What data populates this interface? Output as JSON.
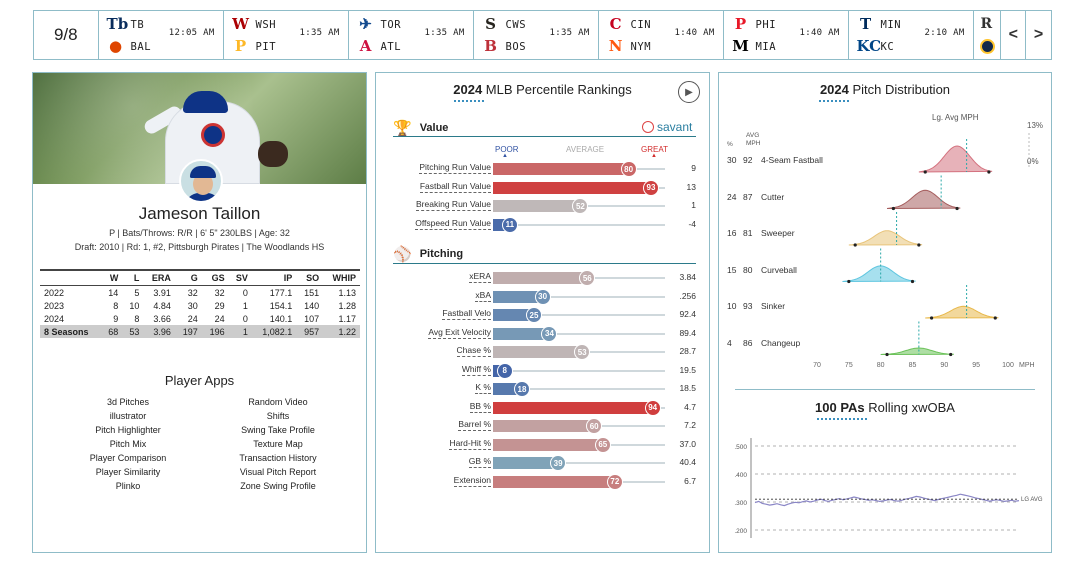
{
  "topbar": {
    "date": "9/8",
    "games": [
      {
        "away": "TB",
        "home": "BAL",
        "time": "12:05 AM",
        "away_color": "#092c5c",
        "home_color": "#df4601",
        "away_logo": "Tb",
        "home_logo": "●"
      },
      {
        "away": "WSH",
        "home": "PIT",
        "time": "1:35 AM",
        "away_color": "#ab0003",
        "home_color": "#fdb827",
        "away_logo": "W",
        "home_logo": "P"
      },
      {
        "away": "TOR",
        "home": "ATL",
        "time": "1:35 AM",
        "away_color": "#134a8e",
        "home_color": "#ce1141",
        "away_logo": "✈",
        "home_logo": "A"
      },
      {
        "away": "CWS",
        "home": "BOS",
        "time": "1:35 AM",
        "away_color": "#27251f",
        "home_color": "#bd3039",
        "away_logo": "S",
        "home_logo": "B"
      },
      {
        "away": "CIN",
        "home": "NYM",
        "time": "1:40 AM",
        "away_color": "#c6011f",
        "home_color": "#ff5910",
        "away_logo": "C",
        "home_logo": "N"
      },
      {
        "away": "PHI",
        "home": "MIA",
        "time": "1:40 AM",
        "away_color": "#e81828",
        "home_color": "#000000",
        "away_logo": "P",
        "home_logo": "M"
      },
      {
        "away": "MIN",
        "home": "KC",
        "time": "2:10 AM",
        "away_color": "#002b5c",
        "home_color": "#004687",
        "away_logo": "T",
        "home_logo": "KC"
      }
    ],
    "prev_label": "<",
    "next_label": ">"
  },
  "player": {
    "name": "Jameson Taillon",
    "info": "P | Bats/Throws: R/R | 6' 5\" 230LBS | Age: 32",
    "draft": "Draft: 2010 | Rd: 1, #2, Pittsburgh Pirates | The Woodlands HS",
    "stat_headers": [
      "",
      "W",
      "L",
      "ERA",
      "G",
      "GS",
      "SV",
      "IP",
      "SO",
      "WHIP"
    ],
    "stat_rows": [
      [
        "2022",
        "14",
        "5",
        "3.91",
        "32",
        "32",
        "0",
        "177.1",
        "151",
        "1.13"
      ],
      [
        "2023",
        "8",
        "10",
        "4.84",
        "30",
        "29",
        "1",
        "154.1",
        "140",
        "1.28"
      ],
      [
        "2024",
        "9",
        "8",
        "3.66",
        "24",
        "24",
        "0",
        "140.1",
        "107",
        "1.17"
      ]
    ],
    "stat_total": [
      "8 Seasons",
      "68",
      "53",
      "3.96",
      "197",
      "196",
      "1",
      "1,082.1",
      "957",
      "1.22"
    ],
    "apps_title": "Player Apps",
    "apps": [
      "3d Pitches",
      "Random Video",
      "illustrator",
      "Shifts",
      "Pitch Highlighter",
      "Swing Take Profile",
      "Pitch Mix",
      "Texture Map",
      "Player Comparison",
      "Transaction History",
      "Player Similarity",
      "Visual Pitch Report",
      "Plinko",
      "Zone Swing Profile"
    ]
  },
  "percentile": {
    "title_year": "2024",
    "title_rest": " MLB Percentile Rankings",
    "value_label": "Value",
    "savant_label": "savant",
    "scale": {
      "poor": "POOR",
      "average": "AVERAGE",
      "great": "GREAT"
    },
    "pitching_label": "Pitching",
    "value_metrics": [
      {
        "label": "Pitching Run Value",
        "pct": 80,
        "value": "9"
      },
      {
        "label": "Fastball Run Value",
        "pct": 93,
        "value": "13"
      },
      {
        "label": "Breaking Run Value",
        "pct": 52,
        "value": "1"
      },
      {
        "label": "Offspeed Run Value",
        "pct": 11,
        "value": "-4"
      }
    ],
    "pitching_metrics": [
      {
        "label": "xERA",
        "pct": 56,
        "value": "3.84"
      },
      {
        "label": "xBA",
        "pct": 30,
        "value": ".256"
      },
      {
        "label": "Fastball Velo",
        "pct": 25,
        "value": "92.4"
      },
      {
        "label": "Avg Exit Velocity",
        "pct": 34,
        "value": "89.4"
      },
      {
        "label": "Chase %",
        "pct": 53,
        "value": "28.7"
      },
      {
        "label": "Whiff %",
        "pct": 8,
        "value": "19.5"
      },
      {
        "label": "K %",
        "pct": 18,
        "value": "18.5"
      },
      {
        "label": "BB %",
        "pct": 94,
        "value": "4.7"
      },
      {
        "label": "Barrel %",
        "pct": 60,
        "value": "7.2"
      },
      {
        "label": "Hard-Hit %",
        "pct": 65,
        "value": "37.0"
      },
      {
        "label": "GB %",
        "pct": 39,
        "value": "40.4"
      },
      {
        "label": "Extension",
        "pct": 72,
        "value": "6.7"
      }
    ]
  },
  "pitch_dist": {
    "title_year": "2024",
    "title_rest": " Pitch Distribution",
    "lg_avg_label": "Lg. Avg MPH",
    "pct_header": "%",
    "avg_header": "AVG",
    "mph_header": "MPH",
    "scale_top": "13%",
    "scale_bottom": "0%",
    "pitches": [
      {
        "name": "4-Seam Fastball",
        "pct": "30",
        "mph": 92,
        "lg": 93.5,
        "color": "#d4727f",
        "height": 1.0
      },
      {
        "name": "Cutter",
        "pct": "24",
        "mph": 87,
        "lg": 89.5,
        "color": "#a65e5e",
        "height": 0.7
      },
      {
        "name": "Sweeper",
        "pct": "16",
        "mph": 81,
        "lg": 82.5,
        "color": "#e8c47a",
        "height": 0.55
      },
      {
        "name": "Curveball",
        "pct": "15",
        "mph": 80,
        "lg": 80,
        "color": "#5fc6e0",
        "height": 0.6
      },
      {
        "name": "Sinker",
        "pct": "10",
        "mph": 93,
        "lg": 93.5,
        "color": "#e8b84a",
        "height": 0.45
      },
      {
        "name": "Changeup",
        "pct": "4",
        "mph": 86,
        "lg": 86,
        "color": "#6cc25a",
        "height": 0.25
      }
    ],
    "x_ticks": [
      "70",
      "75",
      "80",
      "85",
      "90",
      "95",
      "100"
    ],
    "x_unit": "MPH"
  },
  "rolling": {
    "title_bold": "100 PAs",
    "title_rest": " Rolling xwOBA",
    "y_ticks": [
      ".500",
      ".400",
      ".300",
      ".200"
    ],
    "lg_label": "LG AVG",
    "series": [
      0.298,
      0.302,
      0.295,
      0.292,
      0.289,
      0.291,
      0.294,
      0.29,
      0.287,
      0.292,
      0.296,
      0.299,
      0.297,
      0.301,
      0.304,
      0.3,
      0.303,
      0.307,
      0.31,
      0.305,
      0.302,
      0.306,
      0.309,
      0.312,
      0.308,
      0.311,
      0.314,
      0.318,
      0.315,
      0.311,
      0.309,
      0.306,
      0.308,
      0.305,
      0.302,
      0.304,
      0.307,
      0.309,
      0.305,
      0.303,
      0.306,
      0.31,
      0.313,
      0.316,
      0.32,
      0.318,
      0.314,
      0.311,
      0.308,
      0.305,
      0.309,
      0.312,
      0.315,
      0.318,
      0.321,
      0.324,
      0.328,
      0.325,
      0.322,
      0.319,
      0.315,
      0.312,
      0.309,
      0.306,
      0.303,
      0.306,
      0.308,
      0.305,
      0.302,
      0.304,
      0.306,
      0.303,
      0.305
    ]
  },
  "colors": {
    "panel_border": "#8fbcc8",
    "great": "#d22d2d",
    "poor": "#3455a4",
    "average": "#b3b3b3"
  }
}
